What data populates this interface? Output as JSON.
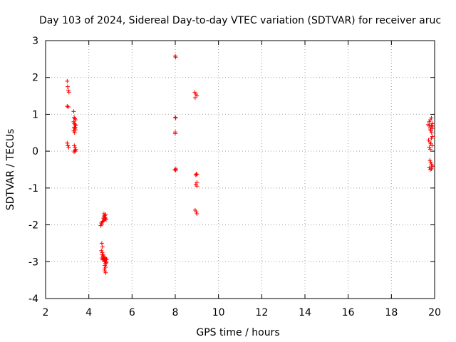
{
  "chart_data": {
    "type": "scatter",
    "title": "Day 103 of 2024, Sidereal Day-to-day VTEC variation (SDTVAR) for receiver aruc",
    "xlabel": "GPS time / hours",
    "ylabel": "SDTVAR / TECUs",
    "xlim": [
      2,
      20
    ],
    "ylim": [
      -4,
      3
    ],
    "xticks": [
      "2",
      "4",
      "6",
      "8",
      "10",
      "12",
      "14",
      "16",
      "18",
      "20"
    ],
    "yticks": [
      "3",
      "2",
      "1",
      "0",
      "-1",
      "-2",
      "-3",
      "-4"
    ],
    "grid": true,
    "marker": "+",
    "series": [
      {
        "name": "SDTVAR",
        "color": "#ff0000",
        "x": [
          3.0,
          3.02,
          3.05,
          3.08,
          3.0,
          3.05,
          3.0,
          3.03,
          3.07,
          3.3,
          3.32,
          3.35,
          3.38,
          3.3,
          3.33,
          3.36,
          3.4,
          3.32,
          3.35,
          3.38,
          3.3,
          3.34,
          3.37,
          3.33,
          3.36,
          3.4,
          3.35,
          3.32,
          3.38,
          4.55,
          4.6,
          4.58,
          4.62,
          4.65,
          4.6,
          4.63,
          4.58,
          4.62,
          4.66,
          4.6,
          4.64,
          4.7,
          4.72,
          4.68,
          4.75,
          4.7,
          4.73,
          4.78,
          4.7,
          4.76,
          4.8,
          4.72,
          4.77,
          4.8,
          4.74,
          4.78,
          4.7,
          4.75,
          4.8,
          4.72,
          4.78,
          4.74,
          4.8,
          4.76,
          4.7,
          4.82,
          4.76,
          4.62,
          4.66,
          4.68,
          8.0,
          8.02,
          8.0,
          8.02,
          8.0,
          8.0,
          8.03,
          7.98,
          8.02,
          8.9,
          8.95,
          9.0,
          8.92,
          8.97,
          9.0,
          8.95,
          9.0,
          8.95,
          9.0,
          8.92,
          8.97,
          9.0,
          19.7,
          19.75,
          19.8,
          19.85,
          19.9,
          19.75,
          19.8,
          19.85,
          19.9,
          19.72,
          19.78,
          19.82,
          19.88,
          19.75,
          19.8,
          19.85,
          19.9,
          19.78,
          19.82,
          19.85,
          19.9,
          19.75,
          19.8,
          19.85,
          19.9,
          19.82,
          19.86,
          19.8,
          19.88
        ],
        "y": [
          1.9,
          1.75,
          1.65,
          1.6,
          1.22,
          1.2,
          0.22,
          0.15,
          0.1,
          1.08,
          0.92,
          0.88,
          0.85,
          0.8,
          0.75,
          0.72,
          0.7,
          0.65,
          0.62,
          0.58,
          0.55,
          0.5,
          0.65,
          0.15,
          0.1,
          0.05,
          0.02,
          -0.02,
          0.0,
          -2.02,
          -1.98,
          -1.95,
          -1.92,
          -1.9,
          -2.5,
          -2.6,
          -2.7,
          -2.8,
          -2.85,
          -2.9,
          -2.95,
          -1.88,
          -1.85,
          -1.82,
          -1.8,
          -1.78,
          -1.75,
          -1.72,
          -1.7,
          -1.82,
          -1.86,
          -2.95,
          -3.0,
          -3.05,
          -3.1,
          -3.15,
          -2.92,
          -2.98,
          -3.02,
          -3.2,
          -3.3,
          -3.25,
          -2.95,
          -2.9,
          -2.88,
          -2.93,
          -3.05,
          -2.75,
          -2.82,
          -2.92,
          2.58,
          2.55,
          0.92,
          0.9,
          0.52,
          0.48,
          -0.48,
          -0.5,
          -0.52,
          1.6,
          1.55,
          1.5,
          1.45,
          -0.62,
          -0.63,
          -0.65,
          -0.85,
          -0.9,
          -0.95,
          -1.6,
          -1.65,
          -1.7,
          0.72,
          0.8,
          0.85,
          0.9,
          0.75,
          0.7,
          0.65,
          0.7,
          0.68,
          0.3,
          0.25,
          0.2,
          0.15,
          0.1,
          0.05,
          0.35,
          0.4,
          -0.25,
          -0.3,
          -0.35,
          -0.4,
          -0.45,
          -0.5,
          -0.48,
          -0.42,
          0.55,
          0.5,
          0.6,
          0.62
        ]
      }
    ]
  }
}
